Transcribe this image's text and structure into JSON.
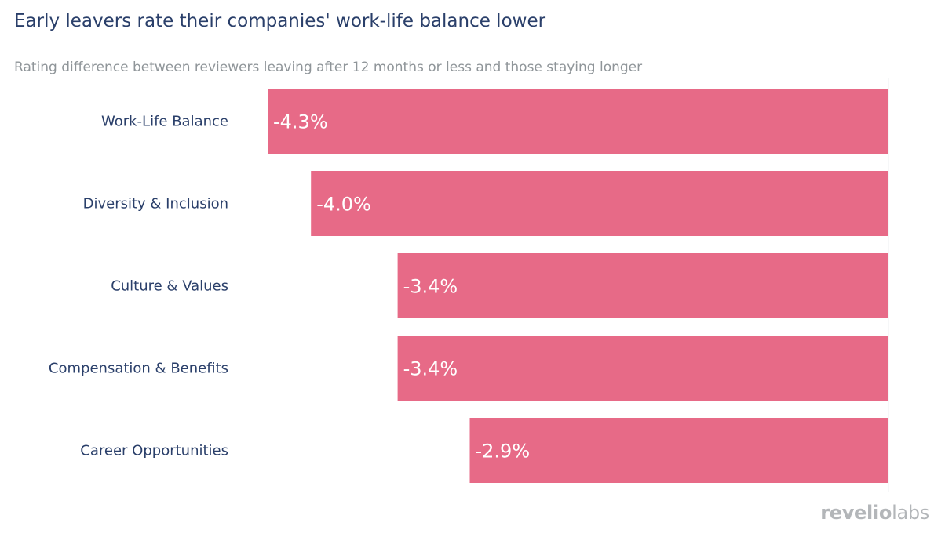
{
  "title": "Early leavers rate their companies' work-life balance lower",
  "subtitle": "Rating difference between reviewers leaving after 12 months or less and those staying longer",
  "logo": {
    "part1": "revelio",
    "part2": "labs"
  },
  "chart_data": {
    "type": "bar",
    "orientation": "horizontal",
    "categories": [
      "Work-Life Balance",
      "Diversity & Inclusion",
      "Culture & Values",
      "Compensation & Benefits",
      "Career Opportunities"
    ],
    "values": [
      -4.3,
      -4.0,
      -3.4,
      -3.4,
      -2.9
    ],
    "labels": [
      "-4.3%",
      "-4.0%",
      "-3.4%",
      "-3.4%",
      "-2.9%"
    ],
    "unit": "%",
    "xlim": [
      -4.3,
      0
    ],
    "grid": false,
    "legend": "none",
    "bar_color": "#e76a87",
    "label_color": "#ffffff",
    "category_color": "#2a3f6a"
  }
}
